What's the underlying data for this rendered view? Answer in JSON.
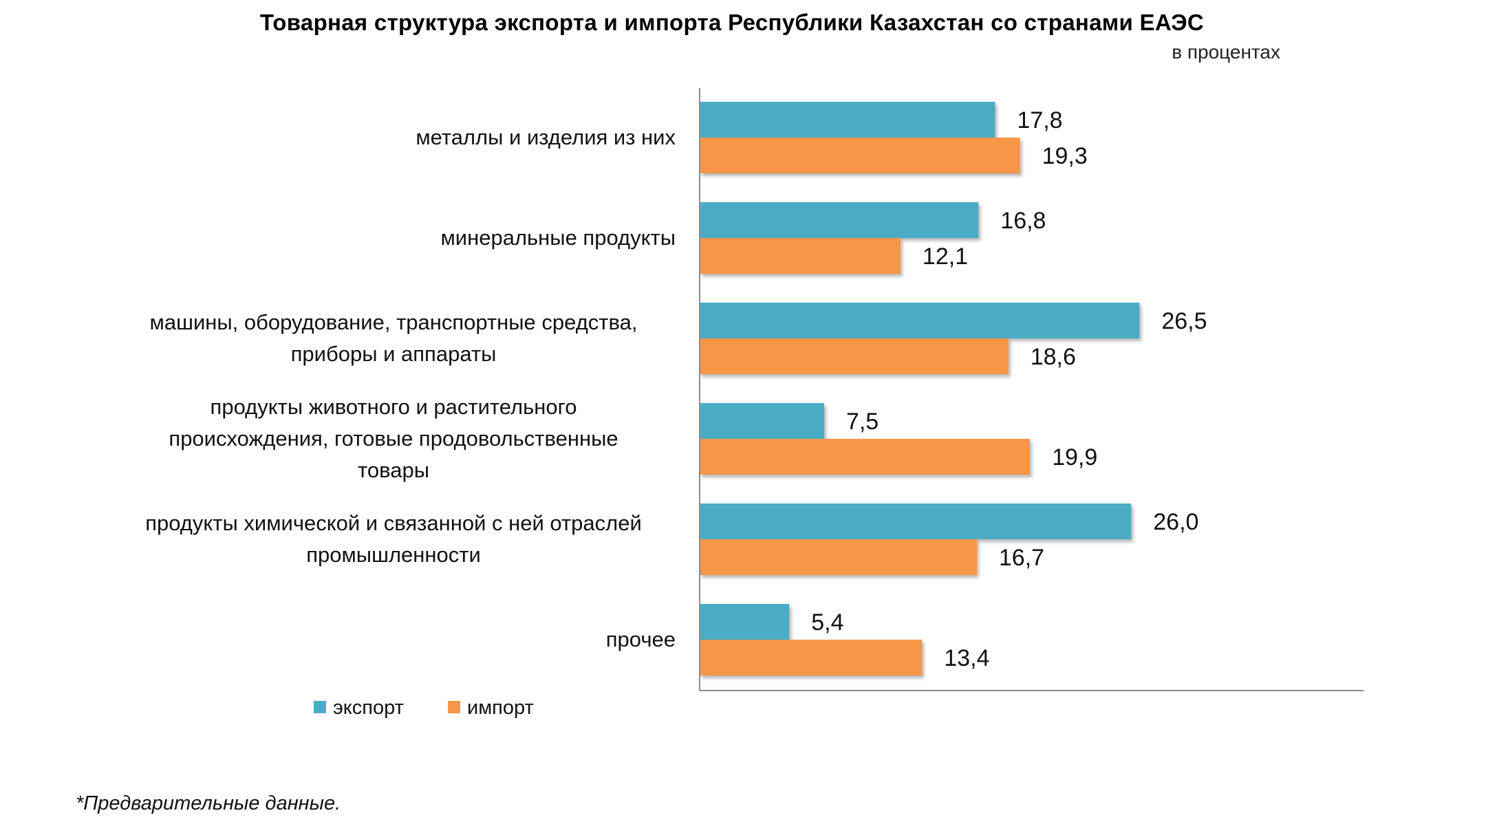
{
  "chart_data": {
    "type": "bar",
    "orientation": "horizontal",
    "title": "Товарная  структура  экспорта  и импорта  Республики  Казахстан  со странами  ЕАЭС",
    "unit_note": "в процентах",
    "categories": [
      [
        "металлы и изделия из них"
      ],
      [
        "минеральные  продукты"
      ],
      [
        "машины, оборудование, транспортные  средства,",
        "приборы и аппараты"
      ],
      [
        "продукты животного и растительного",
        "происхождения,  готовые продовольственные",
        "товары"
      ],
      [
        "продукты химической  и связанной с ней отраслей",
        "промышленности"
      ],
      [
        "прочее"
      ]
    ],
    "series": [
      {
        "name": "экспорт",
        "color": "#4BACC6",
        "values": [
          17.8,
          16.8,
          26.5,
          7.5,
          26.0,
          5.4
        ],
        "labels": [
          "17,8",
          "16,8",
          "26,5",
          "7,5",
          "26,0",
          "5,4"
        ]
      },
      {
        "name": "импорт",
        "color": "#F79646",
        "values": [
          19.3,
          12.1,
          18.6,
          19.9,
          16.7,
          13.4
        ],
        "labels": [
          "19,3",
          "12,1",
          "18,6",
          "19,9",
          "16,7",
          "13,4"
        ]
      }
    ],
    "xlim": [
      0,
      40
    ],
    "grid": false,
    "legend_position": "bottom-left"
  },
  "footnote": "*Предварительные данные."
}
